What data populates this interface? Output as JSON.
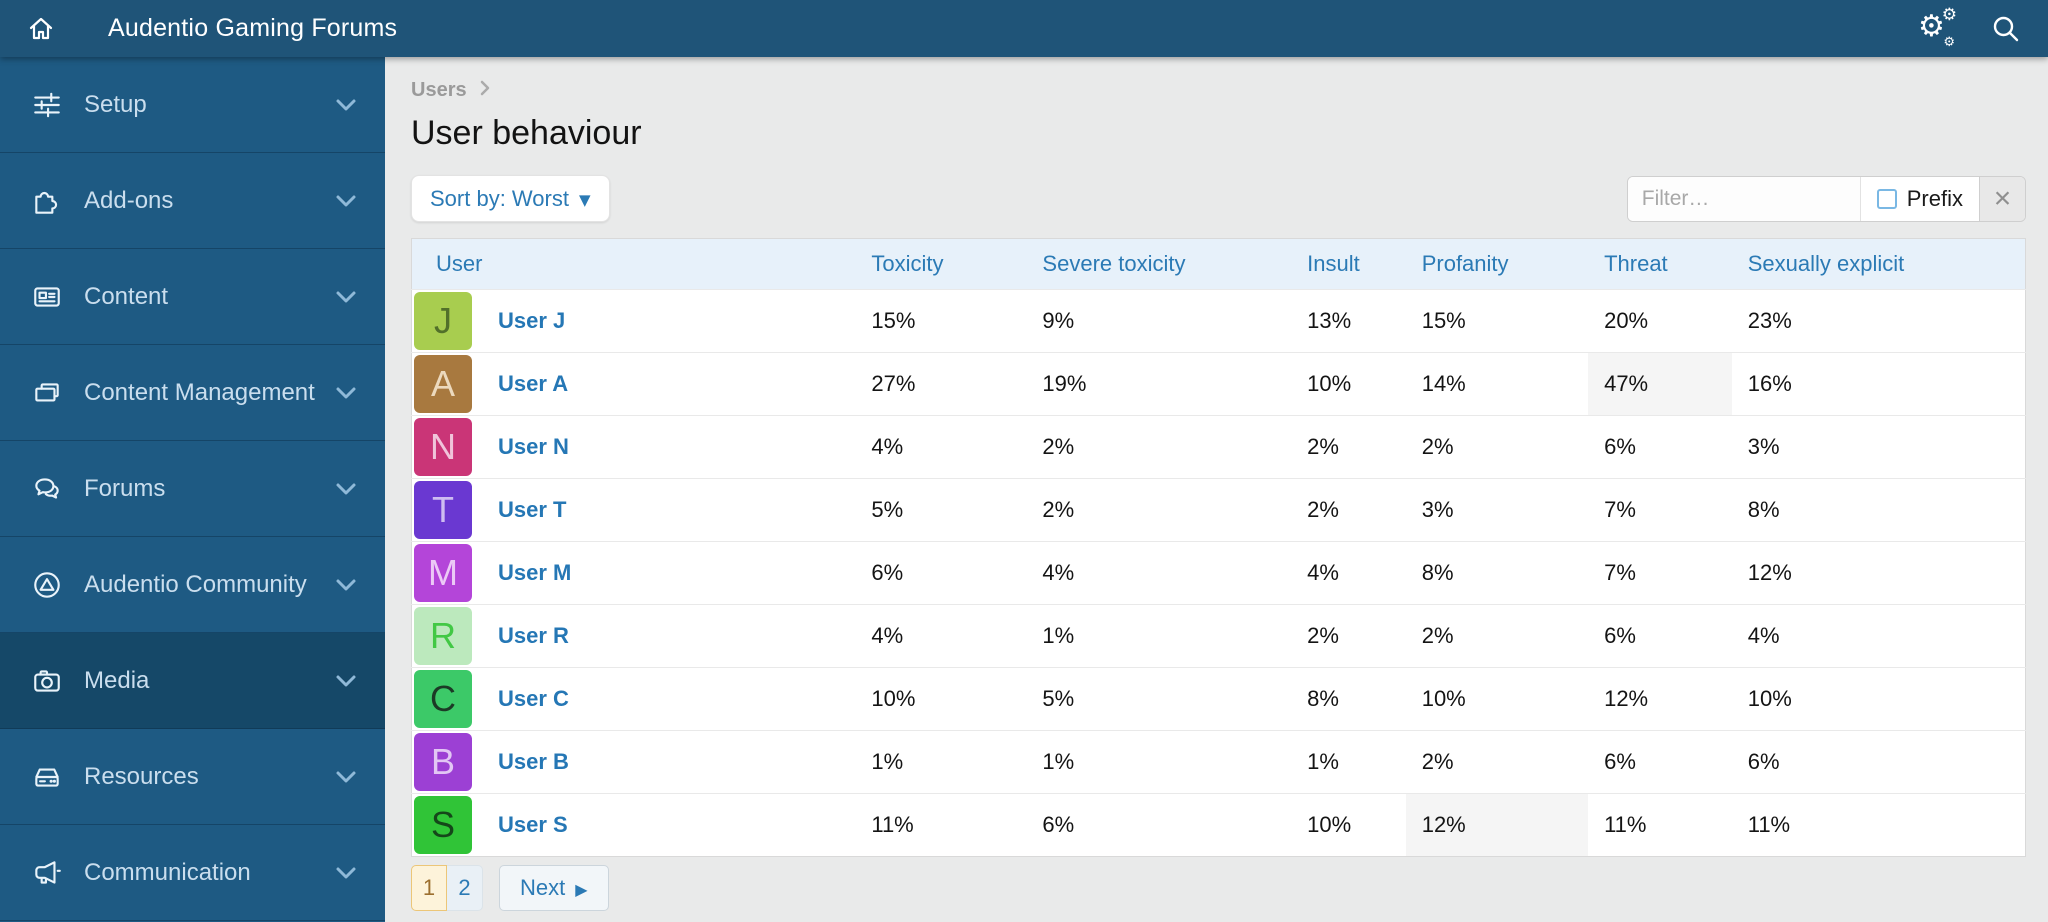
{
  "navbar": {
    "title": "Audentio Gaming Forums",
    "left_icon": "home-icon",
    "right_icons": [
      "gears-icon",
      "search-icon"
    ]
  },
  "sidebar": {
    "items": [
      {
        "label": "Setup",
        "icon": "sliders-icon",
        "active": false
      },
      {
        "label": "Add-ons",
        "icon": "puzzle-icon",
        "active": false
      },
      {
        "label": "Content",
        "icon": "newspaper-icon",
        "active": false
      },
      {
        "label": "Content Management",
        "icon": "folders-icon",
        "active": false
      },
      {
        "label": "Forums",
        "icon": "chat-bubbles-icon",
        "active": false
      },
      {
        "label": "Audentio Community",
        "icon": "triangle-circle-icon",
        "active": false
      },
      {
        "label": "Media",
        "icon": "camera-icon",
        "active": true
      },
      {
        "label": "Resources",
        "icon": "drive-icon",
        "active": false
      },
      {
        "label": "Communication",
        "icon": "megaphone-icon",
        "active": false
      }
    ]
  },
  "page": {
    "breadcrumb": "Users",
    "title": "User behaviour"
  },
  "toolbar": {
    "sort_button": "Sort by: Worst",
    "filter_placeholder": "Filter…",
    "prefix_label": "Prefix",
    "prefix_checked": false,
    "clear_label": "×"
  },
  "table": {
    "columns": [
      "User",
      "Toxicity",
      "Severe toxicity",
      "Insult",
      "Profanity",
      "Threat",
      "Sexually explicit"
    ],
    "rows": [
      {
        "initial": "J",
        "name": "User J",
        "avatar_bg": "#a8cd4f",
        "avatar_fg": "#52702a",
        "values": [
          "15%",
          "9%",
          "13%",
          "15%",
          "20%",
          "23%"
        ],
        "highlight_index": -1
      },
      {
        "initial": "A",
        "name": "User A",
        "avatar_bg": "#a8793f",
        "avatar_fg": "#ecd9bd",
        "values": [
          "27%",
          "19%",
          "10%",
          "14%",
          "47%",
          "16%"
        ],
        "highlight_index": 4
      },
      {
        "initial": "N",
        "name": "User N",
        "avatar_bg": "#ca3577",
        "avatar_fg": "#f0c4da",
        "values": [
          "4%",
          "2%",
          "2%",
          "2%",
          "6%",
          "3%"
        ],
        "highlight_index": -1
      },
      {
        "initial": "T",
        "name": "User T",
        "avatar_bg": "#6a38d1",
        "avatar_fg": "#cebcf1",
        "values": [
          "5%",
          "2%",
          "2%",
          "3%",
          "7%",
          "8%"
        ],
        "highlight_index": -1
      },
      {
        "initial": "M",
        "name": "User M",
        "avatar_bg": "#b445d9",
        "avatar_fg": "#ecc9f6",
        "values": [
          "6%",
          "4%",
          "4%",
          "8%",
          "7%",
          "12%"
        ],
        "highlight_index": -1
      },
      {
        "initial": "R",
        "name": "User R",
        "avatar_bg": "#bce9bd",
        "avatar_fg": "#42c845",
        "values": [
          "4%",
          "1%",
          "2%",
          "2%",
          "6%",
          "4%"
        ],
        "highlight_index": -1
      },
      {
        "initial": "C",
        "name": "User C",
        "avatar_bg": "#3cc968",
        "avatar_fg": "#1c3a26",
        "values": [
          "10%",
          "5%",
          "8%",
          "10%",
          "12%",
          "10%"
        ],
        "highlight_index": -1
      },
      {
        "initial": "B",
        "name": "User B",
        "avatar_bg": "#9c40d4",
        "avatar_fg": "#e2c6f4",
        "values": [
          "1%",
          "1%",
          "1%",
          "2%",
          "6%",
          "6%"
        ],
        "highlight_index": -1
      },
      {
        "initial": "S",
        "name": "User S",
        "avatar_bg": "#30c437",
        "avatar_fg": "#15471a",
        "values": [
          "11%",
          "6%",
          "10%",
          "12%",
          "11%",
          "11%"
        ],
        "highlight_index": 3
      }
    ]
  },
  "pagination": {
    "pages": [
      {
        "label": "1",
        "active": true
      },
      {
        "label": "2",
        "active": false
      }
    ],
    "next_label": "Next"
  },
  "colors": {
    "navbar_bg": "#1f5478",
    "sidebar_bg": "#1e5a83",
    "sidebar_active_bg": "#154868",
    "content_bg": "#e9eaea",
    "accent_blue": "#2b7ab5",
    "header_bg": "#e7f1fa",
    "highlight_cell": "#f5f5f5",
    "active_page_bg": "#fdf3da",
    "active_page_border": "#ecc678"
  }
}
